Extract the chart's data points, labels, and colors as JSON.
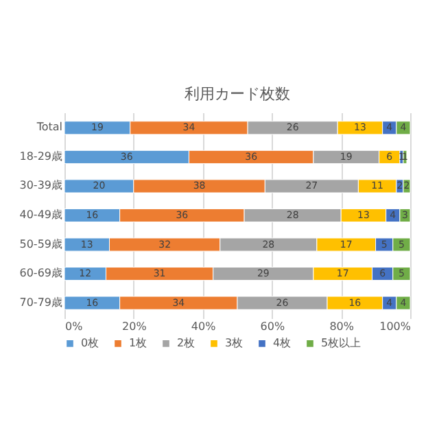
{
  "chart_data": {
    "type": "bar",
    "orientation": "horizontal",
    "stacked": true,
    "title": "利用カード枚数",
    "categories": [
      "Total",
      "18-29歳",
      "30-39歳",
      "40-49歳",
      "50-59歳",
      "60-69歳",
      "70-79歳"
    ],
    "series": [
      {
        "name": "0枚",
        "color": "#5b9bd5",
        "values": [
          19,
          36,
          20,
          16,
          13,
          12,
          16
        ]
      },
      {
        "name": "1枚",
        "color": "#ed7d31",
        "values": [
          34,
          36,
          38,
          36,
          32,
          31,
          34
        ]
      },
      {
        "name": "2枚",
        "color": "#a5a5a5",
        "values": [
          26,
          19,
          27,
          28,
          28,
          29,
          26
        ]
      },
      {
        "name": "3枚",
        "color": "#ffc000",
        "values": [
          13,
          6,
          11,
          13,
          17,
          17,
          16
        ]
      },
      {
        "name": "4枚",
        "color": "#4472c4",
        "values": [
          4,
          1,
          2,
          4,
          5,
          6,
          4
        ]
      },
      {
        "name": "5枚以上",
        "color": "#70ad47",
        "values": [
          4,
          1,
          2,
          3,
          5,
          5,
          4
        ]
      }
    ],
    "xlim": [
      0,
      100
    ],
    "xticks": [
      {
        "value": 0,
        "label": "0%"
      },
      {
        "value": 20,
        "label": "20%"
      },
      {
        "value": 40,
        "label": "40%"
      },
      {
        "value": 60,
        "label": "60%"
      },
      {
        "value": 80,
        "label": "80%"
      },
      {
        "value": 100,
        "label": "100%"
      }
    ],
    "grid": "x",
    "legend": "bottom",
    "data_labels": true
  }
}
